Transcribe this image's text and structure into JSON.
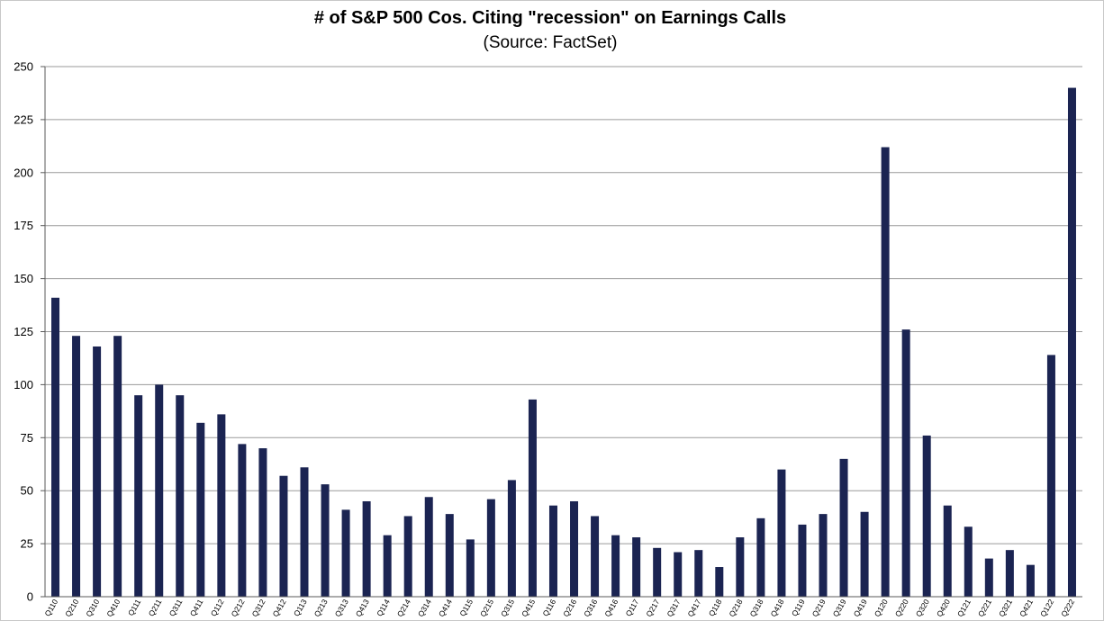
{
  "colors": {
    "bar": "#1b2452",
    "grid": "#9a9a9a",
    "background": "#ffffff"
  },
  "chart_data": {
    "type": "bar",
    "title": "# of S&P 500 Cos. Citing \"recession\" on Earnings Calls",
    "subtitle": "(Source: FactSet)",
    "xlabel": "",
    "ylabel": "",
    "ylim": [
      0,
      250
    ],
    "yticks": [
      0,
      25,
      50,
      75,
      100,
      125,
      150,
      175,
      200,
      225,
      250
    ],
    "grid": true,
    "legend": "none",
    "categories": [
      "Q110",
      "Q210",
      "Q310",
      "Q410",
      "Q111",
      "Q211",
      "Q311",
      "Q411",
      "Q112",
      "Q212",
      "Q312",
      "Q412",
      "Q113",
      "Q213",
      "Q313",
      "Q413",
      "Q114",
      "Q214",
      "Q314",
      "Q414",
      "Q115",
      "Q215",
      "Q315",
      "Q415",
      "Q116",
      "Q216",
      "Q316",
      "Q416",
      "Q117",
      "Q217",
      "Q317",
      "Q417",
      "Q118",
      "Q218",
      "Q318",
      "Q418",
      "Q119",
      "Q219",
      "Q319",
      "Q419",
      "Q120",
      "Q220",
      "Q320",
      "Q420",
      "Q121",
      "Q221",
      "Q321",
      "Q421",
      "Q122",
      "Q222"
    ],
    "values": [
      141,
      123,
      118,
      123,
      95,
      100,
      95,
      82,
      86,
      72,
      70,
      57,
      61,
      53,
      41,
      45,
      29,
      38,
      47,
      39,
      27,
      46,
      55,
      93,
      43,
      45,
      38,
      29,
      28,
      23,
      21,
      22,
      14,
      28,
      37,
      60,
      34,
      39,
      65,
      40,
      212,
      126,
      76,
      43,
      33,
      18,
      22,
      15,
      114,
      240
    ]
  }
}
